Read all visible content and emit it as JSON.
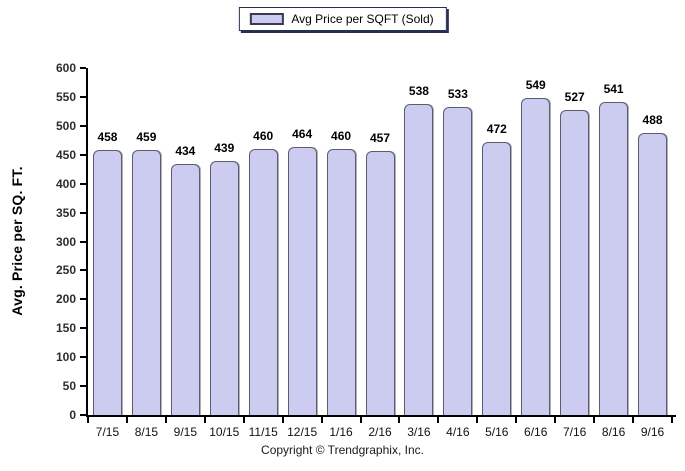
{
  "chart_data": {
    "type": "bar",
    "categories": [
      "7/15",
      "8/15",
      "9/15",
      "10/15",
      "11/15",
      "12/15",
      "1/16",
      "2/16",
      "3/16",
      "4/16",
      "5/16",
      "6/16",
      "7/16",
      "8/16",
      "9/16"
    ],
    "values": [
      458,
      459,
      434,
      439,
      460,
      464,
      460,
      457,
      538,
      533,
      472,
      549,
      527,
      541,
      488
    ],
    "title": "",
    "xlabel": "",
    "ylabel": "Avg. Price per SQ. FT.",
    "ylim": [
      0,
      600
    ],
    "y_tick_step": 50,
    "y_ticks": [
      0,
      50,
      100,
      150,
      200,
      250,
      300,
      350,
      400,
      450,
      500,
      550,
      600
    ],
    "grid": false,
    "legend": [
      "Avg Price per SQFT (Sold)"
    ],
    "legend_position": "top-center",
    "bar_fill_color": "#ccccf0",
    "bar_border_color": "#5c5c6e",
    "footer": "Copyright © Trendgraphix, Inc."
  }
}
